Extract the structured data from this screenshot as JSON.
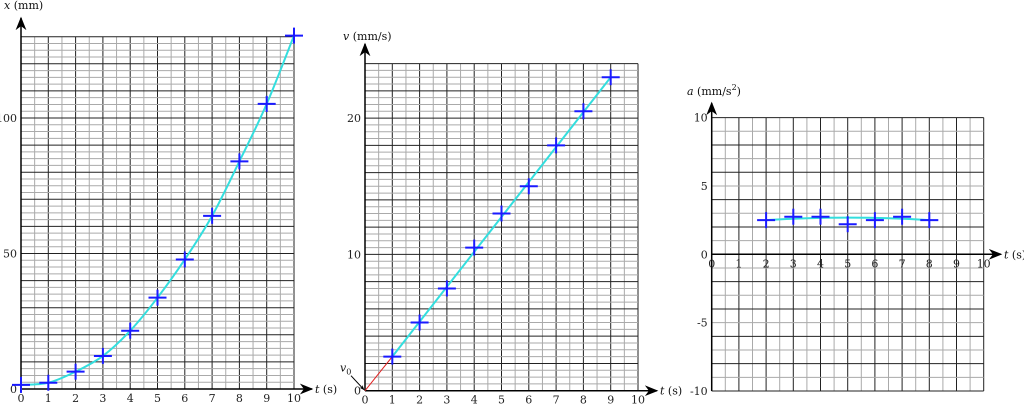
{
  "chart_data": [
    {
      "type": "scatter",
      "ylabel_var": "x",
      "ylabel_unit": " (mm)",
      "xlabel_var": "t",
      "xlabel_unit": " (s)",
      "xlim": [
        0,
        10
      ],
      "ylim": [
        0,
        130
      ],
      "grid": true,
      "xticks": [
        "0",
        "1",
        "2",
        "3",
        "4",
        "5",
        "6",
        "7",
        "8",
        "9",
        "10"
      ],
      "yticks": [
        {
          "value": 0,
          "label": "0"
        },
        {
          "value": 50,
          "label": "50"
        },
        {
          "value": 100,
          "label": "100"
        }
      ],
      "x": [
        0,
        1,
        2,
        3,
        4,
        5,
        6,
        7,
        8,
        9,
        10
      ],
      "y": [
        1.5,
        2.3,
        6.4,
        12.2,
        21.5,
        33.7,
        47.8,
        63.9,
        84,
        105.2,
        130.4
      ],
      "fit": "smooth curve",
      "colors": {
        "marker": "#1a1aff",
        "fit": "#33dede"
      }
    },
    {
      "type": "scatter",
      "ylabel_var": "v",
      "ylabel_unit": " (mm/s)",
      "xlabel_var": "t",
      "xlabel_unit": " (s)",
      "xlim": [
        0,
        10
      ],
      "ylim": [
        0,
        24
      ],
      "grid": true,
      "xticks": [
        "0",
        "1",
        "2",
        "3",
        "4",
        "5",
        "6",
        "7",
        "8",
        "9",
        "10"
      ],
      "yticks": [
        {
          "value": 0,
          "label": "0"
        },
        {
          "value": 10,
          "label": "10"
        },
        {
          "value": 20,
          "label": "20"
        }
      ],
      "x": [
        1,
        2,
        3,
        4,
        5,
        6,
        7,
        8,
        9
      ],
      "y": [
        2.5,
        5.0,
        7.5,
        10.5,
        13.0,
        15.0,
        18.0,
        20.5,
        23.0
      ],
      "fit": "line",
      "annotation": {
        "label": "v",
        "subscript": "0"
      },
      "colors": {
        "marker": "#1a1aff",
        "fit": "#33dede",
        "extrapolation": "#e02020"
      }
    },
    {
      "type": "scatter",
      "ylabel_var": "a",
      "ylabel_unit": " (mm/s",
      "ylabel_sup": "2",
      "ylabel_close": ")",
      "xlabel_var": "t",
      "xlabel_unit": " (s)",
      "xlim": [
        0,
        10
      ],
      "ylim": [
        -10,
        10
      ],
      "grid": true,
      "xticks": [
        "0",
        "1",
        "2",
        "3",
        "4",
        "5",
        "6",
        "7",
        "8",
        "9",
        "10"
      ],
      "yticks": [
        {
          "value": 10,
          "label": "10"
        },
        {
          "value": 5,
          "label": "5"
        },
        {
          "value": 0,
          "label": "0"
        },
        {
          "value": -5,
          "label": "-5"
        },
        {
          "value": -10,
          "label": "-10"
        }
      ],
      "x": [
        2,
        3,
        4,
        5,
        6,
        7,
        8
      ],
      "y": [
        2.5,
        2.75,
        2.75,
        2.2,
        2.5,
        2.75,
        2.5
      ],
      "fit": "near-constant",
      "colors": {
        "marker": "#1a1aff",
        "fit": "#33dede"
      }
    }
  ]
}
